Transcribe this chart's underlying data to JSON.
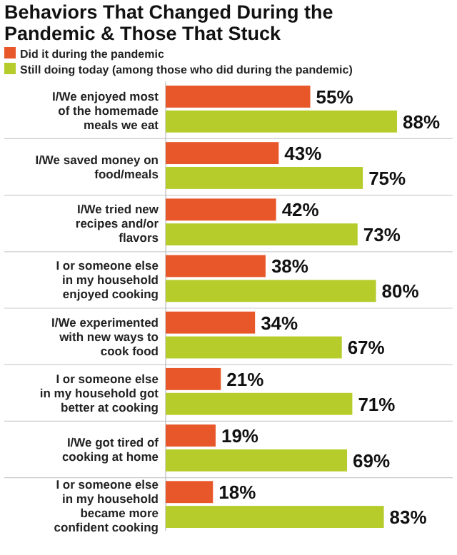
{
  "chart_data": {
    "type": "bar",
    "orientation": "horizontal",
    "title": "Behaviors That Changed During the Pandemic & Those That Stuck",
    "legend": "top left",
    "categories": [
      "I/We enjoyed most of the homemade meals we eat",
      "I/We saved money on food/meals",
      "I/We tried new recipes and/or flavors",
      "I or someone else in my household enjoyed cooking",
      "I/We experimented with new ways to cook food",
      "I or someone else in my household got better at cooking",
      "I/We got tired of cooking at home",
      "I or someone else in my household became more confident cooking"
    ],
    "series": [
      {
        "name": "Did it during the pandemic",
        "color": "#e8572a",
        "values": [
          55,
          43,
          42,
          38,
          34,
          21,
          19,
          18
        ],
        "value_labels": [
          "55%",
          "43%",
          "42%",
          "38%",
          "34%",
          "21%",
          "19%",
          "18%"
        ]
      },
      {
        "name": "Still doing today (among those who did during the pandemic)",
        "color": "#b6cc2b",
        "values": [
          88,
          75,
          73,
          80,
          67,
          71,
          69,
          83
        ],
        "value_labels": [
          "88%",
          "75%",
          "73%",
          "80%",
          "67%",
          "71%",
          "69%",
          "83%"
        ]
      }
    ]
  }
}
